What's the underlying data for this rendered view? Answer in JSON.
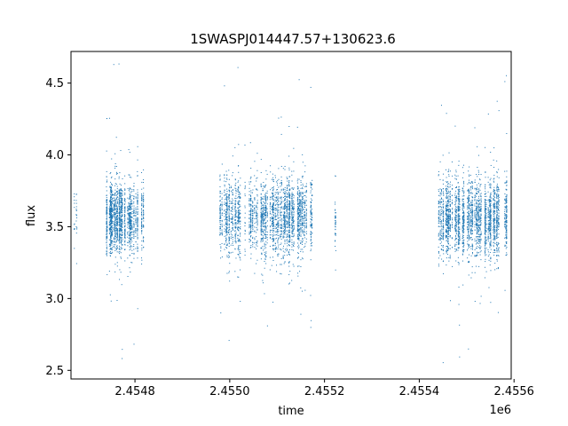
{
  "chart_data": {
    "type": "scatter",
    "title": "1SWASPJ014447.57+130623.6",
    "xlabel": "time",
    "ylabel": "flux",
    "offset_label": "1e6",
    "xlim": [
      2454665,
      2455594
    ],
    "ylim": [
      2.44,
      4.72
    ],
    "x_ticks": [
      2454800,
      2455000,
      2455200,
      2455400,
      2455600
    ],
    "x_tick_labels": [
      "2.4548",
      "2.4550",
      "2.4552",
      "2.4554",
      "2.4556"
    ],
    "y_ticks": [
      2.5,
      3.0,
      3.5,
      4.0,
      4.5
    ],
    "y_tick_labels": [
      "2.5",
      "3.0",
      "3.5",
      "4.0",
      "4.5"
    ],
    "grid": false,
    "marker_color": "#1f77b4",
    "series": [
      {
        "seasons": [
          {
            "x_start": 2454672,
            "x_end": 2454680,
            "center": 3.58,
            "spread": 0.11,
            "count": 30
          },
          {
            "x_start": 2454740,
            "x_end": 2454825,
            "center": 3.56,
            "spread": 0.12,
            "count": 1700
          },
          {
            "x_start": 2454975,
            "x_end": 2455175,
            "center": 3.57,
            "spread": 0.13,
            "count": 2700
          },
          {
            "x_start": 2455222,
            "x_end": 2455225,
            "center": 3.55,
            "spread": 0.12,
            "count": 40
          },
          {
            "x_start": 2455440,
            "x_end": 2455585,
            "center": 3.56,
            "spread": 0.13,
            "count": 2500
          }
        ]
      }
    ]
  }
}
